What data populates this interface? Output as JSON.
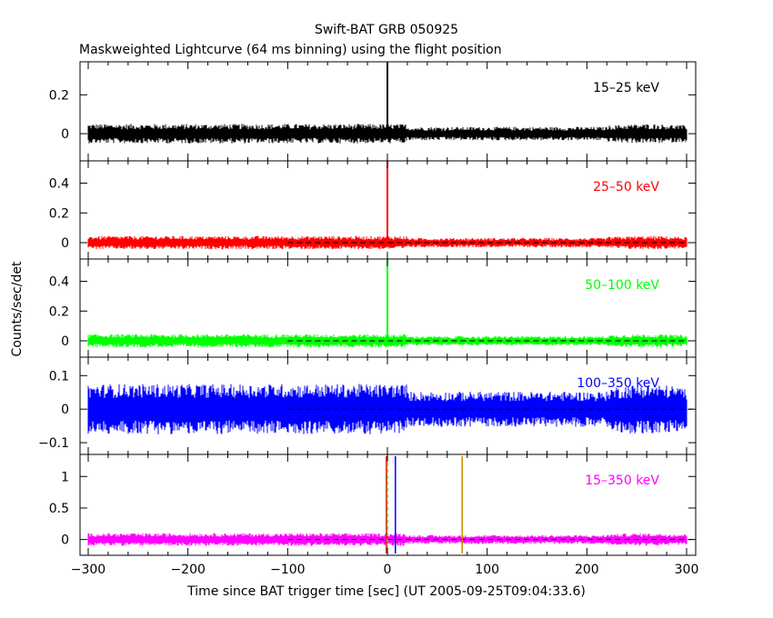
{
  "chart_data": {
    "type": "line",
    "title": "Swift-BAT GRB 050925",
    "subtitle": "Maskweighted Lightcurve (64 ms binning) using the flight position",
    "xlabel": "Time since BAT trigger time [sec] (UT 2005-09-25T09:04:33.6)",
    "ylabel": "Counts/sec/det",
    "xlim": [
      -300,
      300
    ],
    "x_ticks": [
      -300,
      -200,
      -100,
      0,
      100,
      200,
      300
    ],
    "grid": false,
    "panels": [
      {
        "name": "15–25 keV",
        "color": "#000000",
        "ylim": [
          -0.14,
          0.37
        ],
        "y_ticks": [
          0,
          0.2
        ],
        "y_tick_labels": [
          "0",
          "0.2"
        ],
        "noise_amp": 0.05,
        "dashed_zero": false,
        "spike": {
          "x": 0,
          "y": 0.37
        }
      },
      {
        "name": "25–50 keV",
        "color": "#ff0000",
        "ylim": [
          -0.11,
          0.55
        ],
        "y_ticks": [
          0,
          0.2,
          0.4
        ],
        "y_tick_labels": [
          "0",
          "0.2",
          "0.4"
        ],
        "noise_amp": 0.045,
        "dashed_zero": true,
        "spike": {
          "x": 0,
          "y": 0.55
        }
      },
      {
        "name": "50–100 keV",
        "color": "#00ff00",
        "ylim": [
          -0.11,
          0.55
        ],
        "y_ticks": [
          0,
          0.2,
          0.4
        ],
        "y_tick_labels": [
          "0",
          "0.2",
          "0.4"
        ],
        "noise_amp": 0.045,
        "dashed_zero": true,
        "spike": {
          "x": 0,
          "y": 0.55
        }
      },
      {
        "name": "100–350 keV",
        "color": "#0000ff",
        "ylim": [
          -0.135,
          0.155
        ],
        "y_ticks": [
          -0.1,
          0,
          0.1
        ],
        "y_tick_labels": [
          "−0.1",
          "0",
          "0.1"
        ],
        "noise_amp": 0.075,
        "dashed_zero": true,
        "spike": null
      },
      {
        "name": "15–350 keV",
        "color": "#ff00ff",
        "ylim": [
          -0.25,
          1.35
        ],
        "y_ticks": [
          0,
          0.5,
          1
        ],
        "y_tick_labels": [
          "0",
          "0.5",
          "1"
        ],
        "noise_amp": 0.1,
        "dashed_zero": true,
        "spike": null,
        "markers": [
          {
            "x": -1,
            "color": "#ff0000",
            "style": "solid"
          },
          {
            "x": 0,
            "color": "#00ff00",
            "style": "dashed"
          },
          {
            "x": 8,
            "color": "#0000ff",
            "style": "solid"
          },
          {
            "x": 75,
            "color": "#cc8800",
            "style": "solid"
          }
        ]
      }
    ]
  }
}
